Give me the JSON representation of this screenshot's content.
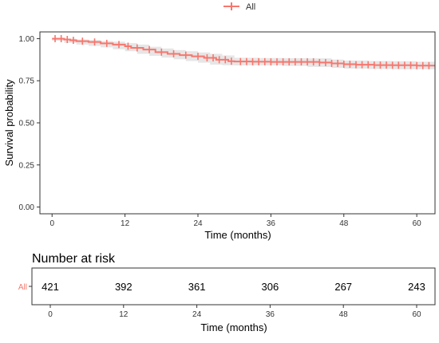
{
  "chart_data": [
    {
      "type": "line",
      "title": "",
      "xlabel": "Time (months)",
      "ylabel": "Survival probability",
      "xlim": [
        -2,
        63
      ],
      "ylim": [
        -0.04,
        1.04
      ],
      "x_ticks": [
        0,
        12,
        24,
        36,
        48,
        60
      ],
      "x_tick_labels": [
        "0",
        "12",
        "24",
        "36",
        "48",
        "60"
      ],
      "y_ticks": [
        0.0,
        0.25,
        0.5,
        0.75,
        1.0
      ],
      "y_tick_labels": [
        "0.00",
        "0.25",
        "0.50",
        "0.75",
        "1.00"
      ],
      "legend": {
        "position": "top-center",
        "entries": [
          "All"
        ]
      },
      "grid": false,
      "colors": {
        "curve": "#f8766d",
        "band": "#e3e3e3",
        "axis": "#333333",
        "frame": "#333333"
      },
      "series": [
        {
          "name": "All",
          "step": [
            [
              0,
              1.0
            ],
            [
              2,
              0.995
            ],
            [
              3,
              0.99
            ],
            [
              4,
              0.985
            ],
            [
              6,
              0.98
            ],
            [
              8,
              0.972
            ],
            [
              10,
              0.965
            ],
            [
              12,
              0.955
            ],
            [
              13,
              0.945
            ],
            [
              15,
              0.935
            ],
            [
              17,
              0.92
            ],
            [
              19,
              0.91
            ],
            [
              21,
              0.902
            ],
            [
              23,
              0.895
            ],
            [
              25,
              0.886
            ],
            [
              27,
              0.875
            ],
            [
              29,
              0.866
            ],
            [
              30,
              0.864
            ],
            [
              33,
              0.863
            ],
            [
              36,
              0.862
            ],
            [
              40,
              0.862
            ],
            [
              44,
              0.858
            ],
            [
              46,
              0.853
            ],
            [
              48,
              0.848
            ],
            [
              50,
              0.845
            ],
            [
              53,
              0.843
            ],
            [
              56,
              0.842
            ],
            [
              60,
              0.84
            ],
            [
              63,
              0.84
            ]
          ],
          "ci_lower": [
            [
              0,
              1.0
            ],
            [
              2,
              0.988
            ],
            [
              4,
              0.975
            ],
            [
              6,
              0.965
            ],
            [
              8,
              0.957
            ],
            [
              10,
              0.948
            ],
            [
              12,
              0.937
            ],
            [
              14,
              0.925
            ],
            [
              16,
              0.91
            ],
            [
              18,
              0.898
            ],
            [
              20,
              0.887
            ],
            [
              22,
              0.877
            ],
            [
              24,
              0.867
            ],
            [
              26,
              0.857
            ],
            [
              28,
              0.846
            ],
            [
              30,
              0.842
            ],
            [
              34,
              0.841
            ],
            [
              38,
              0.841
            ],
            [
              42,
              0.838
            ],
            [
              46,
              0.832
            ],
            [
              48,
              0.826
            ],
            [
              52,
              0.822
            ],
            [
              56,
              0.82
            ],
            [
              60,
              0.818
            ],
            [
              63,
              0.818
            ]
          ],
          "ci_upper": [
            [
              0,
              1.0
            ],
            [
              2,
              1.0
            ],
            [
              4,
              0.995
            ],
            [
              6,
              0.992
            ],
            [
              8,
              0.986
            ],
            [
              10,
              0.982
            ],
            [
              12,
              0.973
            ],
            [
              14,
              0.965
            ],
            [
              16,
              0.952
            ],
            [
              18,
              0.942
            ],
            [
              20,
              0.932
            ],
            [
              22,
              0.925
            ],
            [
              24,
              0.918
            ],
            [
              26,
              0.91
            ],
            [
              28,
              0.9
            ],
            [
              30,
              0.886
            ],
            [
              34,
              0.885
            ],
            [
              38,
              0.884
            ],
            [
              42,
              0.883
            ],
            [
              46,
              0.876
            ],
            [
              48,
              0.87
            ],
            [
              52,
              0.867
            ],
            [
              56,
              0.866
            ],
            [
              60,
              0.863
            ],
            [
              63,
              0.863
            ]
          ],
          "censor_times": [
            0.5,
            1.5,
            2.5,
            3.5,
            5,
            7,
            9,
            11,
            12.5,
            14,
            16,
            18,
            20,
            22,
            24,
            25.5,
            26.5,
            27.5,
            28.5,
            29.5,
            31,
            32,
            33,
            34,
            35,
            36,
            37,
            38,
            39,
            40,
            41,
            42,
            43,
            44,
            45,
            46,
            47,
            48,
            49,
            50,
            51,
            52,
            53,
            54,
            55,
            56,
            57,
            58,
            59,
            60,
            61,
            62
          ]
        }
      ]
    },
    {
      "type": "table",
      "title": "Number at risk",
      "xlabel": "Time (months)",
      "x_ticks": [
        0,
        12,
        24,
        36,
        48,
        60
      ],
      "x_tick_labels": [
        "0",
        "12",
        "24",
        "36",
        "48",
        "60"
      ],
      "row_label": "All",
      "row_label_color": "#f8766d",
      "values": [
        421,
        392,
        361,
        306,
        267,
        243
      ],
      "value_labels": [
        "421",
        "392",
        "361",
        "306",
        "267",
        "243"
      ]
    }
  ]
}
